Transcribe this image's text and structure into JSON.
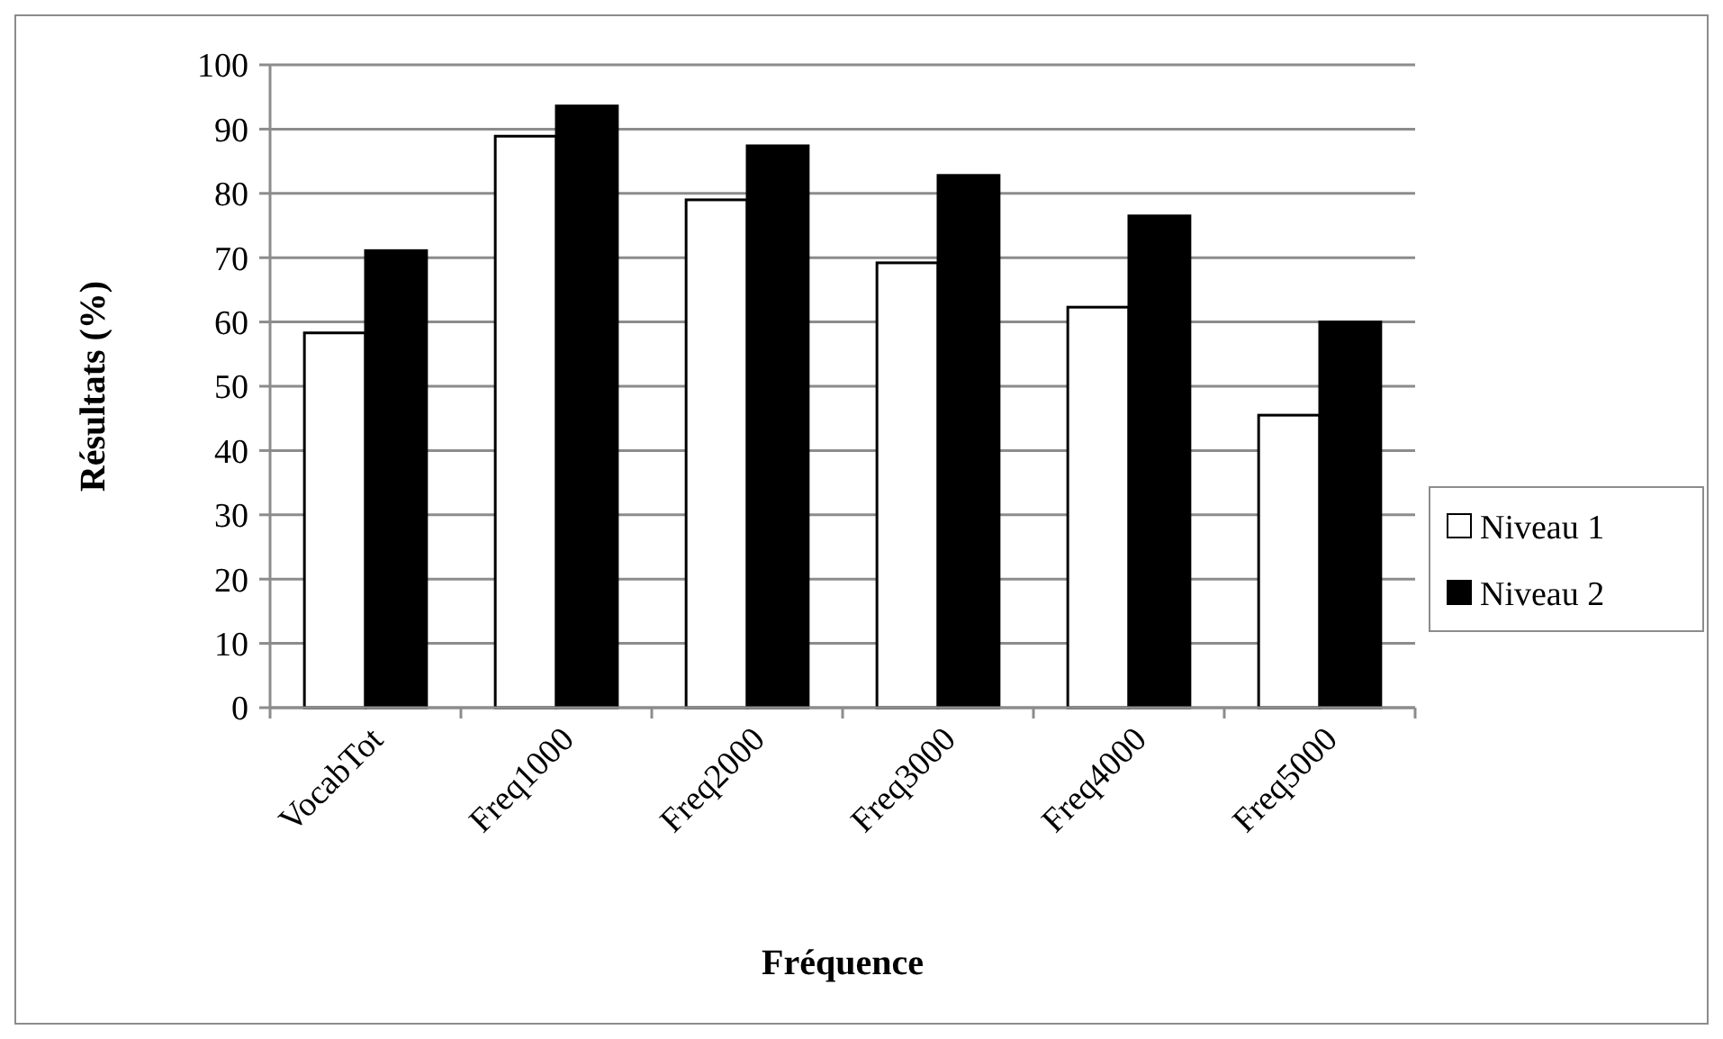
{
  "chart_data": {
    "type": "bar",
    "xlabel": "Fréquence",
    "ylabel": "Résultats (%)",
    "categories": [
      "VocabTot",
      "Freq1000",
      "Freq2000",
      "Freq3000",
      "Freq4000",
      "Freq5000"
    ],
    "series": [
      {
        "name": "Niveau 1",
        "color": "#ffffff",
        "values": [
          58.3,
          88.9,
          79,
          69.2,
          62.3,
          45.5
        ]
      },
      {
        "name": "Niveau 2",
        "color": "#000000",
        "values": [
          71.1,
          93.6,
          87.4,
          82.8,
          76.5,
          60
        ]
      }
    ],
    "ylim": [
      0,
      100
    ],
    "yticks": [
      0,
      10,
      20,
      30,
      40,
      50,
      60,
      70,
      80,
      90,
      100
    ],
    "grid": "y",
    "legend": "right"
  }
}
